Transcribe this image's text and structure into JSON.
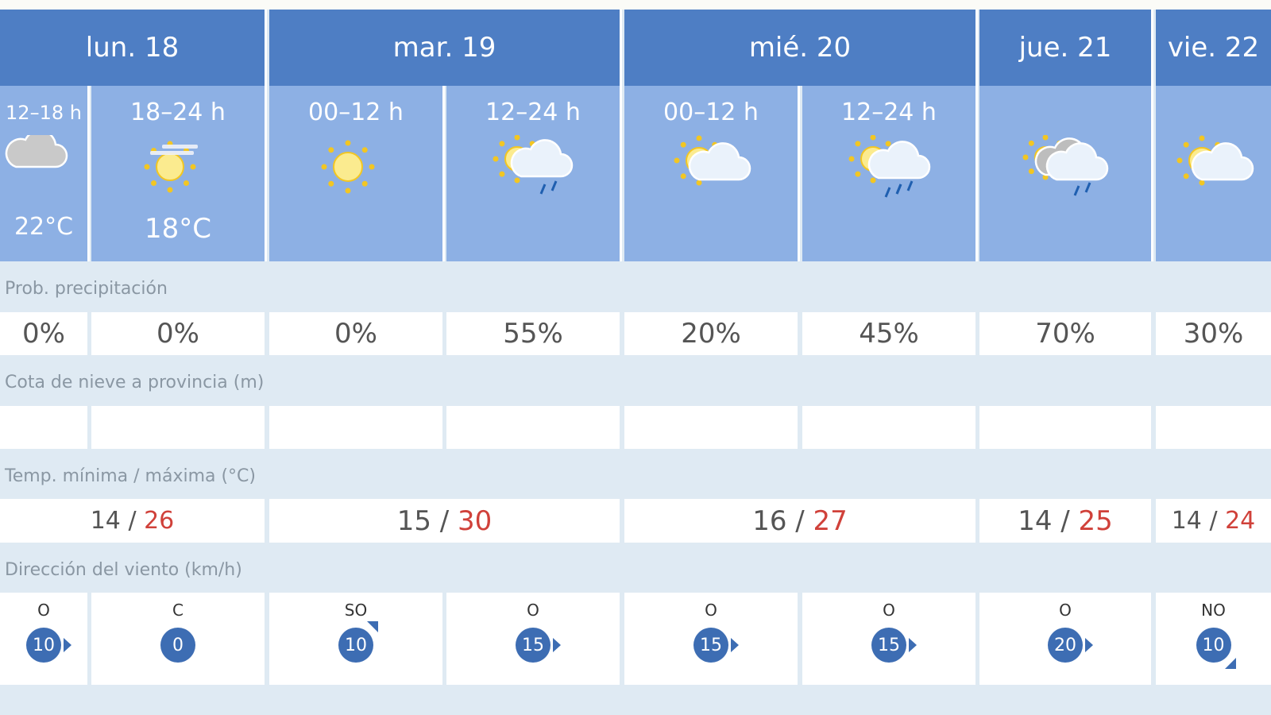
{
  "days": [
    {
      "label": "lun. 18",
      "span": 2
    },
    {
      "label": "mar. 19",
      "span": 2
    },
    {
      "label": "mié. 20",
      "span": 2
    },
    {
      "label": "jue. 21",
      "span": 1
    },
    {
      "label": "vie. 22",
      "span": 1
    }
  ],
  "periods": [
    {
      "label": "12–18 h",
      "sky": "cloudy-icon",
      "temp": "22°C",
      "prob": "0%",
      "temp_min": "14",
      "temp_max": "26",
      "wind_dir": "O",
      "wind_speed": "10",
      "wind_arrow": "e"
    },
    {
      "label": "18–24 h",
      "sky": "sun-haze-icon",
      "temp": "18°C",
      "prob": "0%",
      "wind_dir": "C",
      "wind_speed": "0",
      "wind_arrow": ""
    },
    {
      "label": "00–12 h",
      "sky": "sun-icon",
      "temp": "",
      "prob": "0%",
      "temp_min": "15",
      "temp_max": "30",
      "wind_dir": "SO",
      "wind_speed": "10",
      "wind_arrow": "ne"
    },
    {
      "label": "12–24 h",
      "sky": "sun-cloud-rain-icon",
      "temp": "",
      "prob": "55%",
      "wind_dir": "O",
      "wind_speed": "15",
      "wind_arrow": "e"
    },
    {
      "label": "00–12 h",
      "sky": "sun-cloud-icon",
      "temp": "",
      "prob": "20%",
      "temp_min": "16",
      "temp_max": "27",
      "wind_dir": "O",
      "wind_speed": "15",
      "wind_arrow": "e"
    },
    {
      "label": "12–24 h",
      "sky": "sun-cloud-storm-rain-icon",
      "temp": "",
      "prob": "45%",
      "wind_dir": "O",
      "wind_speed": "15",
      "wind_arrow": "e"
    },
    {
      "label": "",
      "sky": "sun-dark-cloud-rain-icon",
      "temp": "",
      "prob": "70%",
      "temp_min": "14",
      "temp_max": "25",
      "wind_dir": "O",
      "wind_speed": "20",
      "wind_arrow": "e"
    },
    {
      "label": "",
      "sky": "sun-cloud-icon",
      "temp": "",
      "prob": "30%",
      "temp_min": "14",
      "temp_max": "24",
      "wind_dir": "NO",
      "wind_speed": "10",
      "wind_arrow": "se"
    }
  ],
  "rows": {
    "prob_label": "Prob. precipitación",
    "snow_label": "Cota de nieve a provincia (m)",
    "temp_label": "Temp. mínima / máxima (°C)",
    "wind_label": "Dirección del viento (km/h)",
    "temp_sep": " / "
  },
  "colors": {
    "header": "#4e7ec4",
    "period": "#8db0e4",
    "max_temp": "#d0413a",
    "wind_badge": "#3d6db3"
  }
}
